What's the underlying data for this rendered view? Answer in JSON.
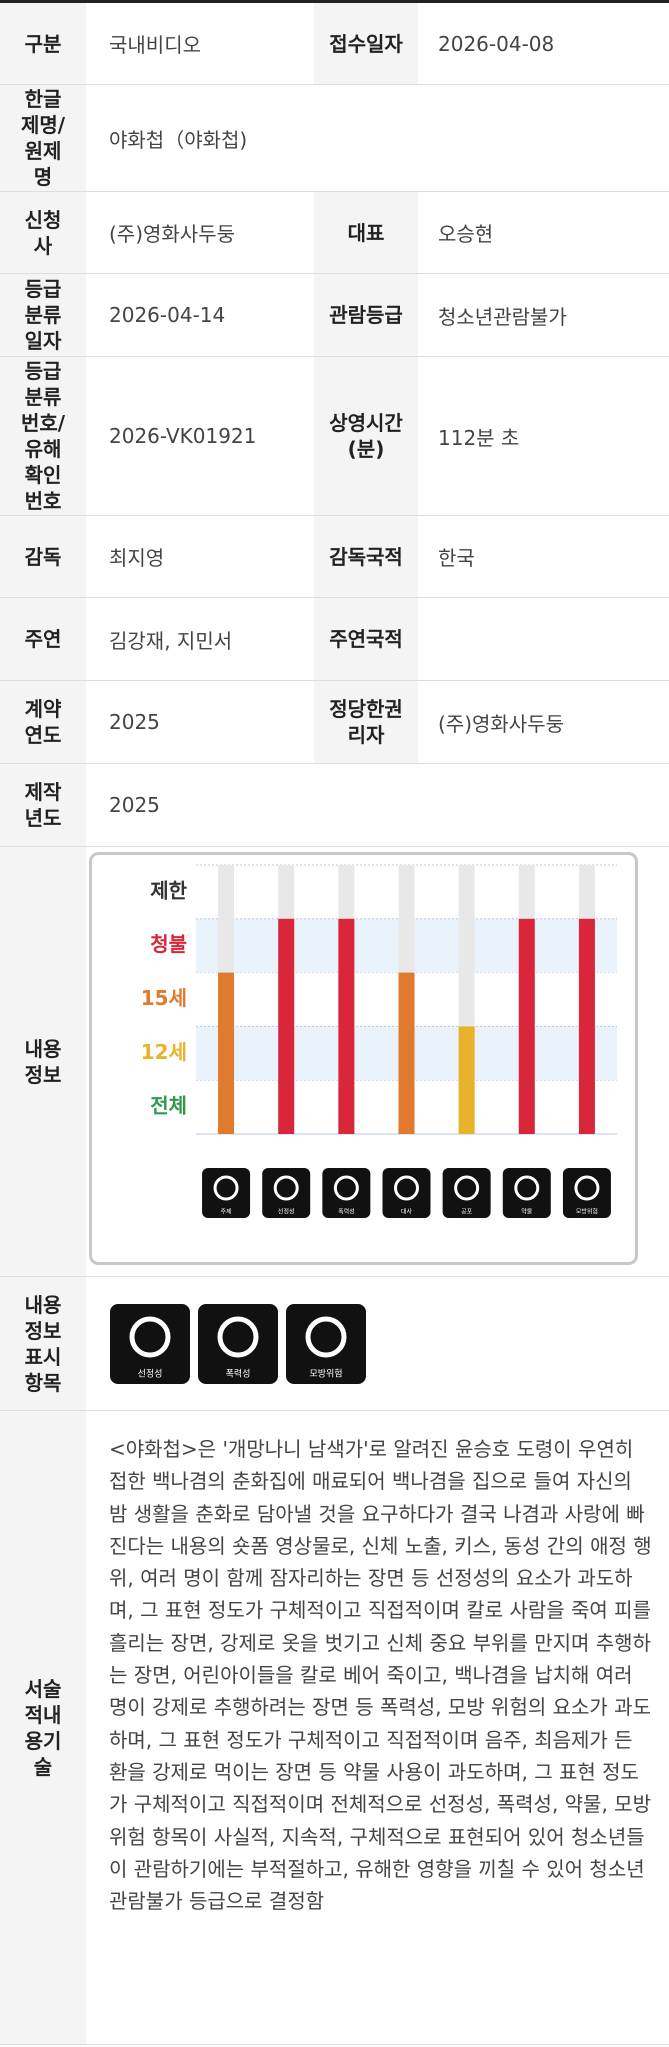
{
  "table": {
    "rows": [
      [
        {
          "label": "구분",
          "value": "국내비디오"
        },
        {
          "label": "접수일자",
          "value": "2026-04-08"
        }
      ],
      [
        {
          "label": "한글제명/원제명",
          "value": "야화첩（야화첩)"
        }
      ],
      [
        {
          "label": "신청사",
          "value": "(주)영화사두둥"
        },
        {
          "label": "대표",
          "value": "오승현"
        }
      ],
      [
        {
          "label": "등급분류일자",
          "value": "2026-04-14"
        },
        {
          "label": "관람등급",
          "value": "청소년관람불가"
        }
      ],
      [
        {
          "label": "등급분류번호/유해확인번호",
          "value": "2026-VK01921"
        },
        {
          "label": "상영시간(분)",
          "value": "112분 초"
        }
      ],
      [
        {
          "label": "감독",
          "value": "최지영"
        },
        {
          "label": "감독국적",
          "value": "한국"
        }
      ],
      [
        {
          "label": "주연",
          "value": "김강재, 지민서"
        },
        {
          "label": "주연국적"
        }
      ],
      [
        {
          "label": "계약연도",
          "value": "2025"
        },
        {
          "label": "정당한권리자",
          "value": "(주)영화사두둥"
        }
      ],
      [
        {
          "label": "제작년도",
          "value": "2025"
        }
      ]
    ]
  },
  "content_info": {
    "label": "내용정보"
  },
  "chart_data": {
    "type": "level-bar",
    "levels": [
      {
        "label": "전체",
        "color": "#2e9a4a"
      },
      {
        "label": "12세",
        "color": "#e8b32a"
      },
      {
        "label": "15세",
        "color": "#e07a2e"
      },
      {
        "label": "청불",
        "color": "#d9263a"
      },
      {
        "label": "제한",
        "color": "#333333"
      }
    ],
    "categories": [
      "주제",
      "선정성",
      "폭력성",
      "대사",
      "공포",
      "약물",
      "모방위험"
    ],
    "values": [
      "15세",
      "청불",
      "청불",
      "15세",
      "12세",
      "청불",
      "청불"
    ]
  },
  "display_items": {
    "label": "내용정보표시항목",
    "items": [
      "선정성",
      "폭력성",
      "모방위험"
    ]
  },
  "description": {
    "label": "서술적내용기술",
    "text": "<야화첩>은 '개망나니 남색가'로 알려진 윤승호 도령이 우연히 접한 백나겸의 춘화집에 매료되어 백나겸을 집으로 들여 자신의 밤 생활을 춘화로 담아낼 것을 요구하다가 결국 나겸과 사랑에 빠진다는 내용의 숏폼 영상물로, 신체 노출, 키스, 동성 간의 애정 행위, 여러 명이 함께 잠자리하는 장면 등 선정성의 요소가 과도하며, 그 표현 정도가 구체적이고 직접적이며 칼로 사람을 죽여 피를 흘리는 장면, 강제로 옷을 벗기고 신체 중요 부위를 만지며 추행하는 장면, 어린아이들을 칼로 베어 죽이고, 백나겸을 납치해 여러 명이 강제로 추행하려는 장면 등 폭력성, 모방 위험의 요소가 과도하며, 그 표현 정도가 구체적이고 직접적이며 음주, 최음제가 든 환을 강제로 먹이는 장면 등 약물 사용이 과도하며, 그 표현 정도가 구체적이고 직접적이며 전체적으로 선정성, 폭력성, 약물, 모방위험 항목이 사실적, 지속적, 구체적으로 표현되어 있어 청소년들이 관람하기에는 부적절하고, 유해한 영향을 끼칠 수 있어 청소년관람불가 등급으로 결정함"
  }
}
